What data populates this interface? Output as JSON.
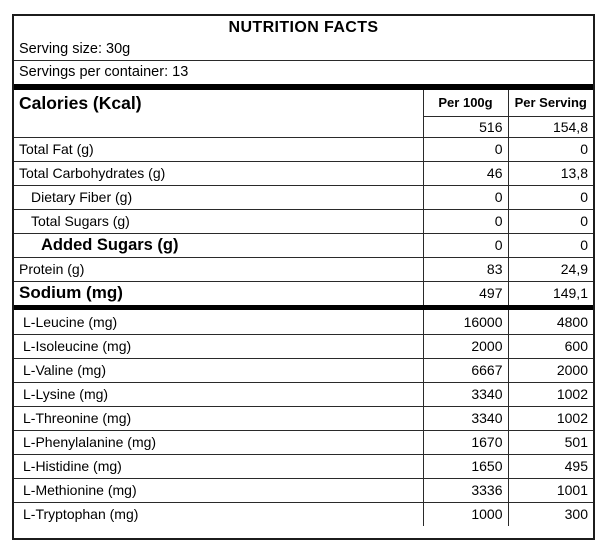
{
  "panel": {
    "title": "NUTRITION FACTS",
    "serving_size": "Serving size: 30g",
    "servings_per_container": "Servings per container: 13"
  },
  "table": {
    "columns": {
      "per_100g": "Per 100g",
      "per_serving": "Per Serving"
    },
    "calories": {
      "label": "Calories (Kcal)",
      "per_100g": "516",
      "per_serving": "154,8"
    },
    "nutrients": [
      {
        "label": "Total Fat (g)",
        "per_100g": "0",
        "per_serving": "0"
      },
      {
        "label": "Total Carbohydrates (g)",
        "per_100g": "46",
        "per_serving": "13,8"
      },
      {
        "label": "Dietary Fiber (g)",
        "per_100g": "0",
        "per_serving": "0"
      },
      {
        "label": "Total Sugars (g)",
        "per_100g": "0",
        "per_serving": "0"
      },
      {
        "label": "Added Sugars (g)",
        "per_100g": "0",
        "per_serving": "0"
      },
      {
        "label": "Protein (g)",
        "per_100g": "83",
        "per_serving": "24,9"
      },
      {
        "label": "Sodium (mg)",
        "per_100g": "497",
        "per_serving": "149,1"
      }
    ],
    "amino_acids": [
      {
        "label": "L-Leucine (mg)",
        "per_100g": "16000",
        "per_serving": "4800"
      },
      {
        "label": "L-Isoleucine (mg)",
        "per_100g": "2000",
        "per_serving": "600"
      },
      {
        "label": "L-Valine (mg)",
        "per_100g": "6667",
        "per_serving": "2000"
      },
      {
        "label": "L-Lysine (mg)",
        "per_100g": "3340",
        "per_serving": "1002"
      },
      {
        "label": "L-Threonine (mg)",
        "per_100g": "3340",
        "per_serving": "1002"
      },
      {
        "label": "L-Phenylalanine (mg)",
        "per_100g": "1670",
        "per_serving": "501"
      },
      {
        "label": "L-Histidine (mg)",
        "per_100g": "1650",
        "per_serving": "495"
      },
      {
        "label": "L-Methionine (mg)",
        "per_100g": "3336",
        "per_serving": "1001"
      },
      {
        "label": "L-Tryptophan (mg)",
        "per_100g": "1000",
        "per_serving": "300"
      }
    ]
  },
  "colors": {
    "text": "#000000",
    "border": "#2a2a2a",
    "divider_bar": "#000000",
    "background": "#ffffff"
  }
}
